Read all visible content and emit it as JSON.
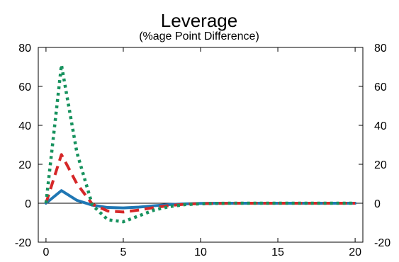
{
  "chart_data": {
    "type": "line",
    "title": "Leverage",
    "subtitle": "(%age Point Difference)",
    "xlabel": "",
    "ylabel": "",
    "xlim": [
      -0.5,
      20.5
    ],
    "ylim": [
      -20,
      80
    ],
    "xticks": [
      0,
      5,
      10,
      15,
      20
    ],
    "yticks": [
      -20,
      0,
      20,
      40,
      60,
      80
    ],
    "right_axis_ticks": [
      -20,
      0,
      20,
      40,
      60,
      80
    ],
    "zero_line": true,
    "grid": false,
    "legend": "none",
    "x": [
      0,
      1,
      2,
      3,
      4,
      5,
      6,
      7,
      8,
      9,
      10,
      11,
      12,
      13,
      14,
      15,
      16,
      17,
      18,
      19,
      20
    ],
    "series": [
      {
        "style": "solid",
        "color": "#1f77b4",
        "values": [
          0,
          6.5,
          1.5,
          -1,
          -2.2,
          -2.4,
          -2,
          -1.3,
          -0.7,
          -0.3,
          -0.1,
          0,
          0,
          0,
          0,
          0,
          0,
          0,
          0,
          0,
          0
        ]
      },
      {
        "style": "dashed",
        "color": "#d62728",
        "values": [
          0,
          25,
          10,
          -0.5,
          -4,
          -4.5,
          -3.5,
          -2.2,
          -1.2,
          -0.5,
          -0.2,
          -0.1,
          0,
          0,
          0,
          0,
          0,
          0,
          0,
          0,
          0
        ]
      },
      {
        "style": "dotted",
        "color": "#17925e",
        "values": [
          0,
          71,
          26,
          -1,
          -8.5,
          -9.5,
          -6.5,
          -3.5,
          -1.7,
          -0.7,
          -0.3,
          -0.1,
          0,
          0,
          0,
          0,
          0,
          0,
          0,
          0,
          0
        ]
      }
    ]
  }
}
